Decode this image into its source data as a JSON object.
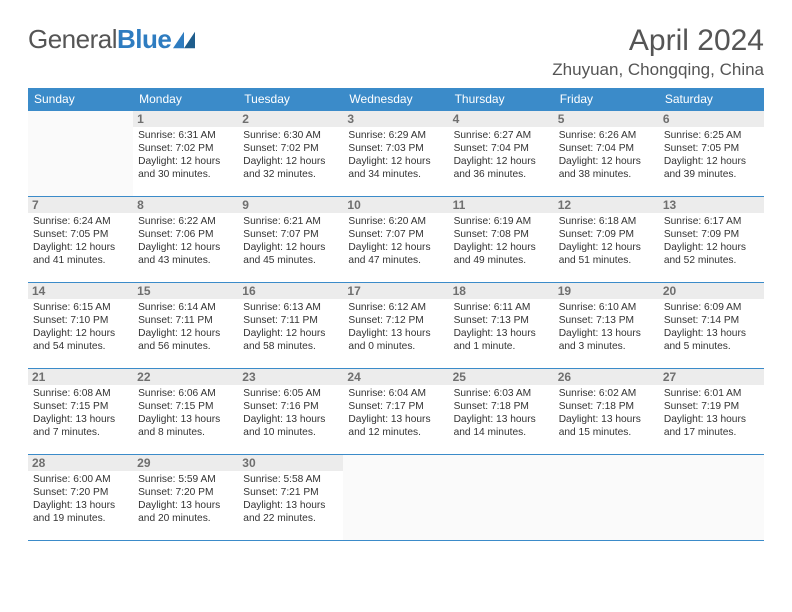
{
  "brand": {
    "general": "General",
    "blue": "Blue"
  },
  "title": "April 2024",
  "location": "Zhuyuan, Chongqing, China",
  "colors": {
    "header_bg": "#3b8bc9",
    "header_text": "#ffffff",
    "border": "#3b8bc9",
    "daynum_bg": "#ececec",
    "daynum_text": "#6f6f6f",
    "body_text": "#333333",
    "brand_blue": "#2e7cc0"
  },
  "day_names": [
    "Sunday",
    "Monday",
    "Tuesday",
    "Wednesday",
    "Thursday",
    "Friday",
    "Saturday"
  ],
  "weeks": [
    [
      {
        "num": "",
        "lines": [
          "",
          "",
          "",
          ""
        ]
      },
      {
        "num": "1",
        "lines": [
          "Sunrise: 6:31 AM",
          "Sunset: 7:02 PM",
          "Daylight: 12 hours",
          "and 30 minutes."
        ]
      },
      {
        "num": "2",
        "lines": [
          "Sunrise: 6:30 AM",
          "Sunset: 7:02 PM",
          "Daylight: 12 hours",
          "and 32 minutes."
        ]
      },
      {
        "num": "3",
        "lines": [
          "Sunrise: 6:29 AM",
          "Sunset: 7:03 PM",
          "Daylight: 12 hours",
          "and 34 minutes."
        ]
      },
      {
        "num": "4",
        "lines": [
          "Sunrise: 6:27 AM",
          "Sunset: 7:04 PM",
          "Daylight: 12 hours",
          "and 36 minutes."
        ]
      },
      {
        "num": "5",
        "lines": [
          "Sunrise: 6:26 AM",
          "Sunset: 7:04 PM",
          "Daylight: 12 hours",
          "and 38 minutes."
        ]
      },
      {
        "num": "6",
        "lines": [
          "Sunrise: 6:25 AM",
          "Sunset: 7:05 PM",
          "Daylight: 12 hours",
          "and 39 minutes."
        ]
      }
    ],
    [
      {
        "num": "7",
        "lines": [
          "Sunrise: 6:24 AM",
          "Sunset: 7:05 PM",
          "Daylight: 12 hours",
          "and 41 minutes."
        ]
      },
      {
        "num": "8",
        "lines": [
          "Sunrise: 6:22 AM",
          "Sunset: 7:06 PM",
          "Daylight: 12 hours",
          "and 43 minutes."
        ]
      },
      {
        "num": "9",
        "lines": [
          "Sunrise: 6:21 AM",
          "Sunset: 7:07 PM",
          "Daylight: 12 hours",
          "and 45 minutes."
        ]
      },
      {
        "num": "10",
        "lines": [
          "Sunrise: 6:20 AM",
          "Sunset: 7:07 PM",
          "Daylight: 12 hours",
          "and 47 minutes."
        ]
      },
      {
        "num": "11",
        "lines": [
          "Sunrise: 6:19 AM",
          "Sunset: 7:08 PM",
          "Daylight: 12 hours",
          "and 49 minutes."
        ]
      },
      {
        "num": "12",
        "lines": [
          "Sunrise: 6:18 AM",
          "Sunset: 7:09 PM",
          "Daylight: 12 hours",
          "and 51 minutes."
        ]
      },
      {
        "num": "13",
        "lines": [
          "Sunrise: 6:17 AM",
          "Sunset: 7:09 PM",
          "Daylight: 12 hours",
          "and 52 minutes."
        ]
      }
    ],
    [
      {
        "num": "14",
        "lines": [
          "Sunrise: 6:15 AM",
          "Sunset: 7:10 PM",
          "Daylight: 12 hours",
          "and 54 minutes."
        ]
      },
      {
        "num": "15",
        "lines": [
          "Sunrise: 6:14 AM",
          "Sunset: 7:11 PM",
          "Daylight: 12 hours",
          "and 56 minutes."
        ]
      },
      {
        "num": "16",
        "lines": [
          "Sunrise: 6:13 AM",
          "Sunset: 7:11 PM",
          "Daylight: 12 hours",
          "and 58 minutes."
        ]
      },
      {
        "num": "17",
        "lines": [
          "Sunrise: 6:12 AM",
          "Sunset: 7:12 PM",
          "Daylight: 13 hours",
          "and 0 minutes."
        ]
      },
      {
        "num": "18",
        "lines": [
          "Sunrise: 6:11 AM",
          "Sunset: 7:13 PM",
          "Daylight: 13 hours",
          "and 1 minute."
        ]
      },
      {
        "num": "19",
        "lines": [
          "Sunrise: 6:10 AM",
          "Sunset: 7:13 PM",
          "Daylight: 13 hours",
          "and 3 minutes."
        ]
      },
      {
        "num": "20",
        "lines": [
          "Sunrise: 6:09 AM",
          "Sunset: 7:14 PM",
          "Daylight: 13 hours",
          "and 5 minutes."
        ]
      }
    ],
    [
      {
        "num": "21",
        "lines": [
          "Sunrise: 6:08 AM",
          "Sunset: 7:15 PM",
          "Daylight: 13 hours",
          "and 7 minutes."
        ]
      },
      {
        "num": "22",
        "lines": [
          "Sunrise: 6:06 AM",
          "Sunset: 7:15 PM",
          "Daylight: 13 hours",
          "and 8 minutes."
        ]
      },
      {
        "num": "23",
        "lines": [
          "Sunrise: 6:05 AM",
          "Sunset: 7:16 PM",
          "Daylight: 13 hours",
          "and 10 minutes."
        ]
      },
      {
        "num": "24",
        "lines": [
          "Sunrise: 6:04 AM",
          "Sunset: 7:17 PM",
          "Daylight: 13 hours",
          "and 12 minutes."
        ]
      },
      {
        "num": "25",
        "lines": [
          "Sunrise: 6:03 AM",
          "Sunset: 7:18 PM",
          "Daylight: 13 hours",
          "and 14 minutes."
        ]
      },
      {
        "num": "26",
        "lines": [
          "Sunrise: 6:02 AM",
          "Sunset: 7:18 PM",
          "Daylight: 13 hours",
          "and 15 minutes."
        ]
      },
      {
        "num": "27",
        "lines": [
          "Sunrise: 6:01 AM",
          "Sunset: 7:19 PM",
          "Daylight: 13 hours",
          "and 17 minutes."
        ]
      }
    ],
    [
      {
        "num": "28",
        "lines": [
          "Sunrise: 6:00 AM",
          "Sunset: 7:20 PM",
          "Daylight: 13 hours",
          "and 19 minutes."
        ]
      },
      {
        "num": "29",
        "lines": [
          "Sunrise: 5:59 AM",
          "Sunset: 7:20 PM",
          "Daylight: 13 hours",
          "and 20 minutes."
        ]
      },
      {
        "num": "30",
        "lines": [
          "Sunrise: 5:58 AM",
          "Sunset: 7:21 PM",
          "Daylight: 13 hours",
          "and 22 minutes."
        ]
      },
      {
        "num": "",
        "lines": [
          "",
          "",
          "",
          ""
        ]
      },
      {
        "num": "",
        "lines": [
          "",
          "",
          "",
          ""
        ]
      },
      {
        "num": "",
        "lines": [
          "",
          "",
          "",
          ""
        ]
      },
      {
        "num": "",
        "lines": [
          "",
          "",
          "",
          ""
        ]
      }
    ]
  ]
}
